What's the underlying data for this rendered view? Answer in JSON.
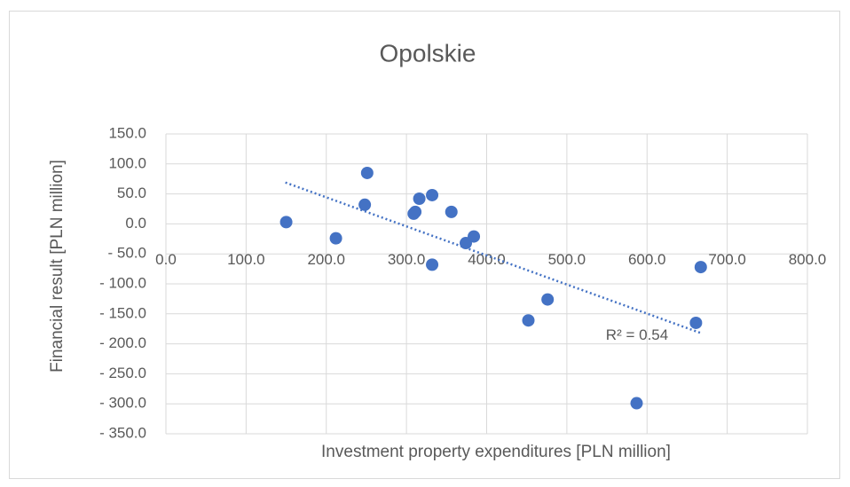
{
  "chart_data": {
    "type": "scatter",
    "title": "Opolskie",
    "x_label": "Investment property expenditures [PLN million]",
    "y_label": "Financial result [PLN million]",
    "color": "#4472c4",
    "x": [
      150,
      212,
      248,
      251,
      309,
      311,
      316,
      332,
      332,
      356,
      374,
      384,
      452,
      476,
      587,
      661,
      667
    ],
    "y": [
      3,
      -24,
      32,
      85,
      17,
      20,
      42,
      48,
      -68,
      20,
      -32,
      -21,
      -161,
      -126,
      -299,
      -165,
      -72
    ],
    "trendline": {
      "x": [
        149,
        667
      ],
      "y": [
        69,
        -182
      ],
      "label": "R² = 0.54"
    },
    "xlim": [
      0,
      800
    ],
    "xticks": [
      {
        "value": 0,
        "label": "0.0"
      },
      {
        "value": 100,
        "label": "100.0"
      },
      {
        "value": 200,
        "label": "200.0"
      },
      {
        "value": 300,
        "label": "300.0"
      },
      {
        "value": 400,
        "label": "400.0"
      },
      {
        "value": 500,
        "label": "500.0"
      },
      {
        "value": 600,
        "label": "600.0"
      },
      {
        "value": 700,
        "label": "700.0"
      },
      {
        "value": 800,
        "label": "800.0"
      }
    ],
    "ylim": [
      -350,
      150
    ],
    "yticks": [
      {
        "value": 150,
        "label": "150.0"
      },
      {
        "value": 100,
        "label": "100.0"
      },
      {
        "value": 50,
        "label": "50.0"
      },
      {
        "value": 0,
        "label": "0.0"
      },
      {
        "value": -50,
        "label": "- 50.0"
      },
      {
        "value": -100,
        "label": "- 100.0"
      },
      {
        "value": -150,
        "label": "- 150.0"
      },
      {
        "value": -200,
        "label": "- 200.0"
      },
      {
        "value": -250,
        "label": "- 250.0"
      },
      {
        "value": -300,
        "label": "- 300.0"
      },
      {
        "value": -350,
        "label": "- 350.0"
      }
    ],
    "grid": true
  }
}
